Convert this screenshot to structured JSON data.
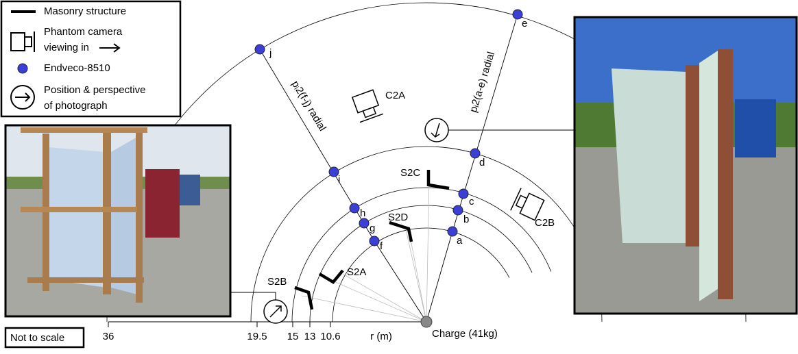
{
  "legend": {
    "items": [
      "Masonry structure",
      "Phantom camera",
      "viewing in",
      "Endveco-8510",
      "Position & perspective",
      "of photograph"
    ]
  },
  "radials": [
    "pᵢ2(f-j) radial",
    "pᵢ2(a-e) radial"
  ],
  "sensors": [
    "a",
    "b",
    "c",
    "d",
    "e",
    "f",
    "g",
    "h",
    "i",
    "j"
  ],
  "walls": [
    "S2A",
    "S2B",
    "S2C",
    "S2D"
  ],
  "cameras": [
    "C2A",
    "C2B"
  ],
  "axis": {
    "ticks": [
      "36",
      "19.5",
      "15",
      "13",
      "10.6"
    ],
    "label": "r (m)"
  },
  "charge": "Charge (41kg)",
  "note": "Not to scale"
}
